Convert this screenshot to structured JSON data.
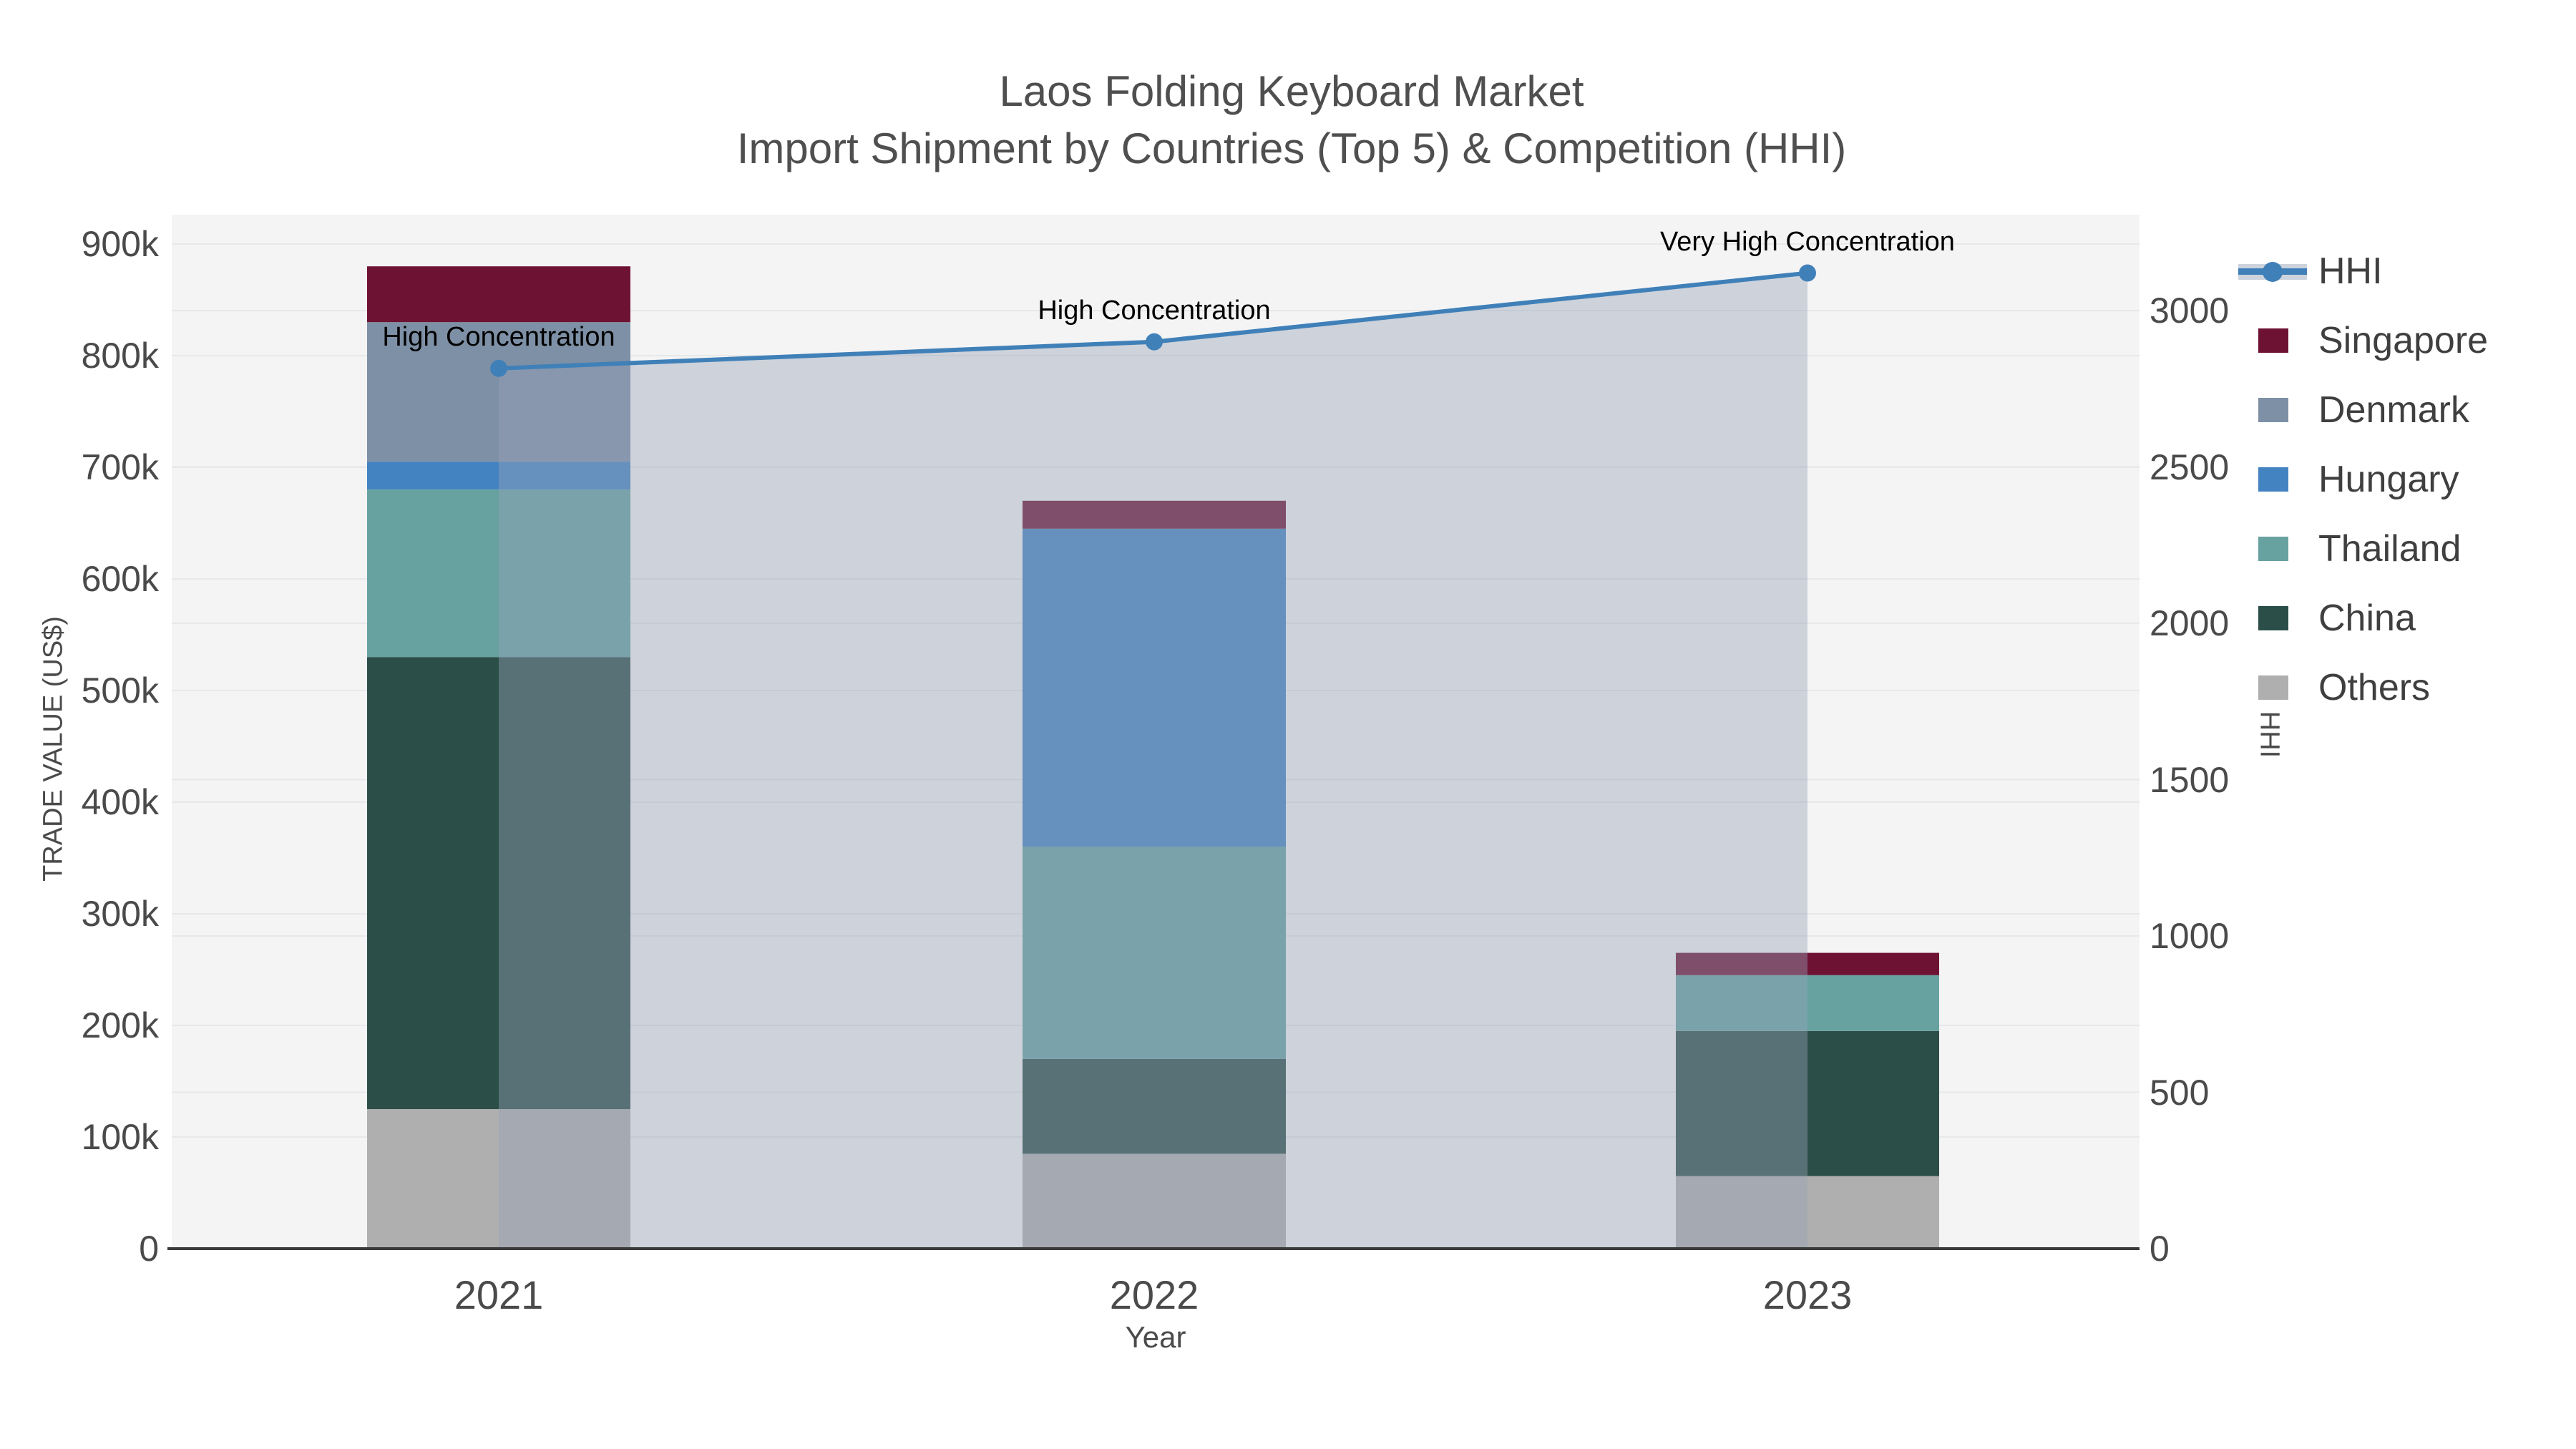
{
  "chart_data": {
    "type": "bar",
    "title": "Laos Folding Keyboard Market",
    "subtitle": "Import Shipment by Countries (Top 5) & Competition (HHI)",
    "xlabel": "Year",
    "ylabel_left": "TRADE VALUE (US$)",
    "ylabel_right": "HHI",
    "categories": [
      "2021",
      "2022",
      "2023"
    ],
    "stack_order_bottom_to_top": [
      "Others",
      "China",
      "Thailand",
      "Hungary",
      "Denmark",
      "Singapore"
    ],
    "series": [
      {
        "name": "Singapore",
        "color": "#6E1233",
        "values": [
          50000,
          25000,
          20000
        ]
      },
      {
        "name": "Denmark",
        "color": "#7E90A5",
        "values": [
          125000,
          0,
          0
        ]
      },
      {
        "name": "Hungary",
        "color": "#4483C2",
        "values": [
          25000,
          285000,
          0
        ]
      },
      {
        "name": "Thailand",
        "color": "#67A2A0",
        "values": [
          150000,
          190000,
          50000
        ]
      },
      {
        "name": "China",
        "color": "#2B4F48",
        "values": [
          405000,
          85000,
          130000
        ]
      },
      {
        "name": "Others",
        "color": "#AFAFAF",
        "values": [
          125000,
          85000,
          65000
        ]
      }
    ],
    "hhi_line": {
      "name": "HHI",
      "color": "#4080B8",
      "area_fill": "rgba(150,163,183,0.42)",
      "values": [
        2815,
        2900,
        3120
      ]
    },
    "annotations": [
      "High Concentration",
      "High Concentration",
      "Very High Concentration"
    ],
    "y_left": {
      "min": 0,
      "max": 900000,
      "tick_labels": [
        "0",
        "100k",
        "200k",
        "300k",
        "400k",
        "500k",
        "600k",
        "700k",
        "800k",
        "900k"
      ]
    },
    "y_right": {
      "min": 0,
      "max": 3000,
      "tick_labels": [
        "0",
        "500",
        "1000",
        "1500",
        "2000",
        "2500",
        "3000"
      ]
    },
    "legend_items": [
      "HHI",
      "Singapore",
      "Denmark",
      "Hungary",
      "Thailand",
      "China",
      "Others"
    ],
    "grid": true,
    "legend_position": "right",
    "colors": {
      "plot_bg": "#F4F4F5",
      "gridline": "#E7E8EA",
      "axis_line": "#3A3A3A",
      "tick_text": "#4A4A4A",
      "title_text": "#4F4F4F"
    }
  }
}
